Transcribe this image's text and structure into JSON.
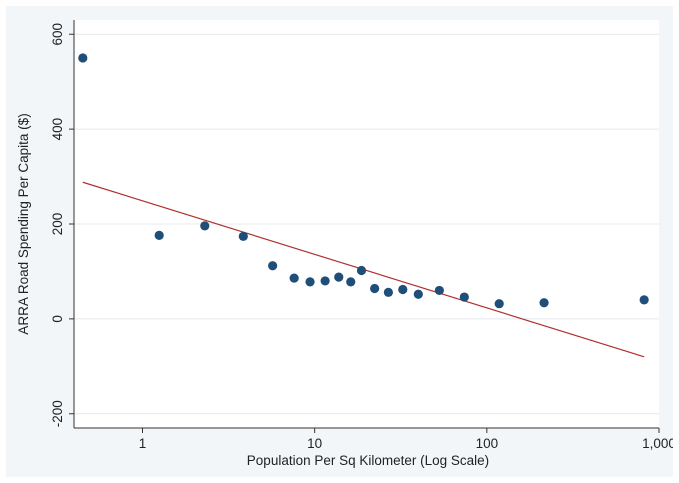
{
  "chart_data": {
    "type": "scatter",
    "xlabel": "Population Per Sq Kilometer (Log Scale)",
    "ylabel": "ARRA Road Spending Per Capita ($)",
    "x_scale": "log",
    "xlim": [
      0.4,
      1000
    ],
    "ylim": [
      -230,
      630
    ],
    "x_ticks": [
      {
        "value": 1,
        "label": "1"
      },
      {
        "value": 10,
        "label": "10"
      },
      {
        "value": 100,
        "label": "100"
      },
      {
        "value": 1000,
        "label": "1,000"
      }
    ],
    "y_ticks": [
      {
        "value": -200,
        "label": "-200"
      },
      {
        "value": 0,
        "label": "0"
      },
      {
        "value": 200,
        "label": "200"
      },
      {
        "value": 400,
        "label": "400"
      },
      {
        "value": 600,
        "label": "600"
      }
    ],
    "grid": true,
    "colors": {
      "points": "#1f4e79",
      "fit_line": "#b03030",
      "grid": "#e4e8ec",
      "axis": "#333333"
    },
    "points": [
      {
        "x": 0.45,
        "y": 550
      },
      {
        "x": 1.25,
        "y": 176
      },
      {
        "x": 2.3,
        "y": 196
      },
      {
        "x": 3.85,
        "y": 174
      },
      {
        "x": 5.7,
        "y": 112
      },
      {
        "x": 7.6,
        "y": 86
      },
      {
        "x": 9.4,
        "y": 78
      },
      {
        "x": 11.5,
        "y": 80
      },
      {
        "x": 13.8,
        "y": 88
      },
      {
        "x": 16.2,
        "y": 78
      },
      {
        "x": 18.7,
        "y": 102
      },
      {
        "x": 22.3,
        "y": 64
      },
      {
        "x": 26.8,
        "y": 56
      },
      {
        "x": 32.5,
        "y": 62
      },
      {
        "x": 40.0,
        "y": 52
      },
      {
        "x": 53.0,
        "y": 60
      },
      {
        "x": 74.0,
        "y": 46
      },
      {
        "x": 118,
        "y": 32
      },
      {
        "x": 215,
        "y": 34
      },
      {
        "x": 820,
        "y": 40
      }
    ],
    "fit_line": {
      "x": [
        0.45,
        820
      ],
      "y": [
        288,
        -80
      ]
    }
  }
}
